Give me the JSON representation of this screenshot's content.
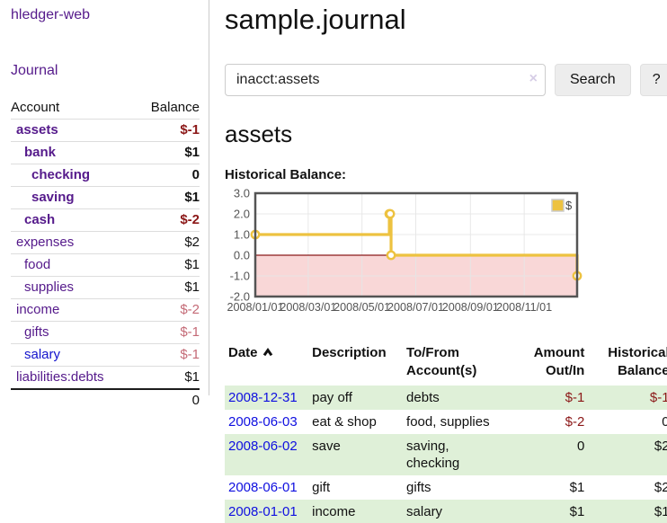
{
  "app": {
    "brand": "hledger-web",
    "nav": {
      "journal": "Journal"
    }
  },
  "sidebar": {
    "header": {
      "account": "Account",
      "balance": "Balance"
    },
    "rows": [
      {
        "label": "assets",
        "balance": "$-1",
        "indent": 1,
        "bold": true,
        "balance_style": "neg-strong"
      },
      {
        "label": "bank",
        "balance": "$1",
        "indent": 2,
        "bold": true,
        "balance_style": "pos"
      },
      {
        "label": "checking",
        "balance": "0",
        "indent": 3,
        "bold": true,
        "balance_style": "pos"
      },
      {
        "label": "saving",
        "balance": "$1",
        "indent": 3,
        "bold": true,
        "balance_style": "pos"
      },
      {
        "label": "cash",
        "balance": "$-2",
        "indent": 2,
        "bold": true,
        "balance_style": "neg-strong"
      },
      {
        "label": "expenses",
        "balance": "$2",
        "indent": 1,
        "bold": false,
        "balance_style": "pos"
      },
      {
        "label": "food",
        "balance": "$1",
        "indent": 2,
        "bold": false,
        "balance_style": "pos"
      },
      {
        "label": "supplies",
        "balance": "$1",
        "indent": 2,
        "bold": false,
        "balance_style": "pos"
      },
      {
        "label": "income",
        "balance": "$-2",
        "indent": 1,
        "bold": false,
        "balance_style": "neg-soft"
      },
      {
        "label": "gifts",
        "balance": "$-1",
        "indent": 2,
        "bold": false,
        "balance_style": "neg-soft"
      },
      {
        "label": "salary",
        "balance": "$-1",
        "indent": 2,
        "bold": false,
        "balance_style": "neg-soft",
        "link_color": "blue"
      },
      {
        "label": "liabilities:debts",
        "balance": "$1",
        "indent": 1,
        "bold": false,
        "balance_style": "pos",
        "dark_border": true
      }
    ],
    "total": "0"
  },
  "main": {
    "title": "sample.journal",
    "search": {
      "value": "inacct:assets",
      "clear_icon": "×",
      "button_label": "Search",
      "help_label": "?"
    },
    "account_heading": "assets",
    "chart_heading": "Historical Balance:"
  },
  "chart_data": {
    "type": "line",
    "step": true,
    "title": "Historical Balance",
    "xlim": [
      "2008-01-01",
      "2008-12-31"
    ],
    "ylim": [
      -2,
      3
    ],
    "yticks": [
      "3.0",
      "2.0",
      "1.0",
      "0.0",
      "-1.0",
      "-2.0"
    ],
    "ytick_values": [
      3,
      2,
      1,
      0,
      -1,
      -2
    ],
    "xticks": [
      "2008/01/01",
      "2008/03/01",
      "2008/05/01",
      "2008/07/01",
      "2008/09/01",
      "2008/11/01"
    ],
    "legend": {
      "label": "$",
      "position": "top-right"
    },
    "grid": true,
    "series": [
      {
        "name": "$",
        "color": "#edc240",
        "points": [
          {
            "x": "2008-01-01",
            "y": 1
          },
          {
            "x": "2008-06-01",
            "y": 2
          },
          {
            "x": "2008-06-02",
            "y": 2
          },
          {
            "x": "2008-06-03",
            "y": 0
          },
          {
            "x": "2008-12-31",
            "y": -1
          }
        ]
      }
    ],
    "colors": {
      "negative_region_fill": "#f9d7d7",
      "zero_line": "#8b1a1a",
      "grid_line": "#e6e6e6",
      "plot_border": "#545454",
      "axis_text": "#545454"
    }
  },
  "register": {
    "headers": {
      "date": "Date",
      "sort_icon": "chevron-up",
      "description": "Description",
      "accounts": "To/From\nAccount(s)",
      "amount": "Amount\nOut/In",
      "balance": "Historical\nBalance"
    },
    "rows": [
      {
        "date": "2008-12-31",
        "description": "pay off",
        "accounts": "debts",
        "amount": "$-1",
        "balance": "$-1",
        "amount_neg": true,
        "balance_neg": true,
        "green": true
      },
      {
        "date": "2008-06-03",
        "description": "eat & shop",
        "accounts": "food, supplies",
        "amount": "$-2",
        "balance": "0",
        "amount_neg": true,
        "balance_neg": false,
        "green": false
      },
      {
        "date": "2008-06-02",
        "description": "save",
        "accounts": "saving,\nchecking",
        "amount": "0",
        "balance": "$2",
        "amount_neg": false,
        "balance_neg": false,
        "green": true
      },
      {
        "date": "2008-06-01",
        "description": "gift",
        "accounts": "gifts",
        "amount": "$1",
        "balance": "$2",
        "amount_neg": false,
        "balance_neg": false,
        "green": false
      },
      {
        "date": "2008-01-01",
        "description": "income",
        "accounts": "salary",
        "amount": "$1",
        "balance": "$1",
        "amount_neg": false,
        "balance_neg": false,
        "green": true
      }
    ]
  }
}
